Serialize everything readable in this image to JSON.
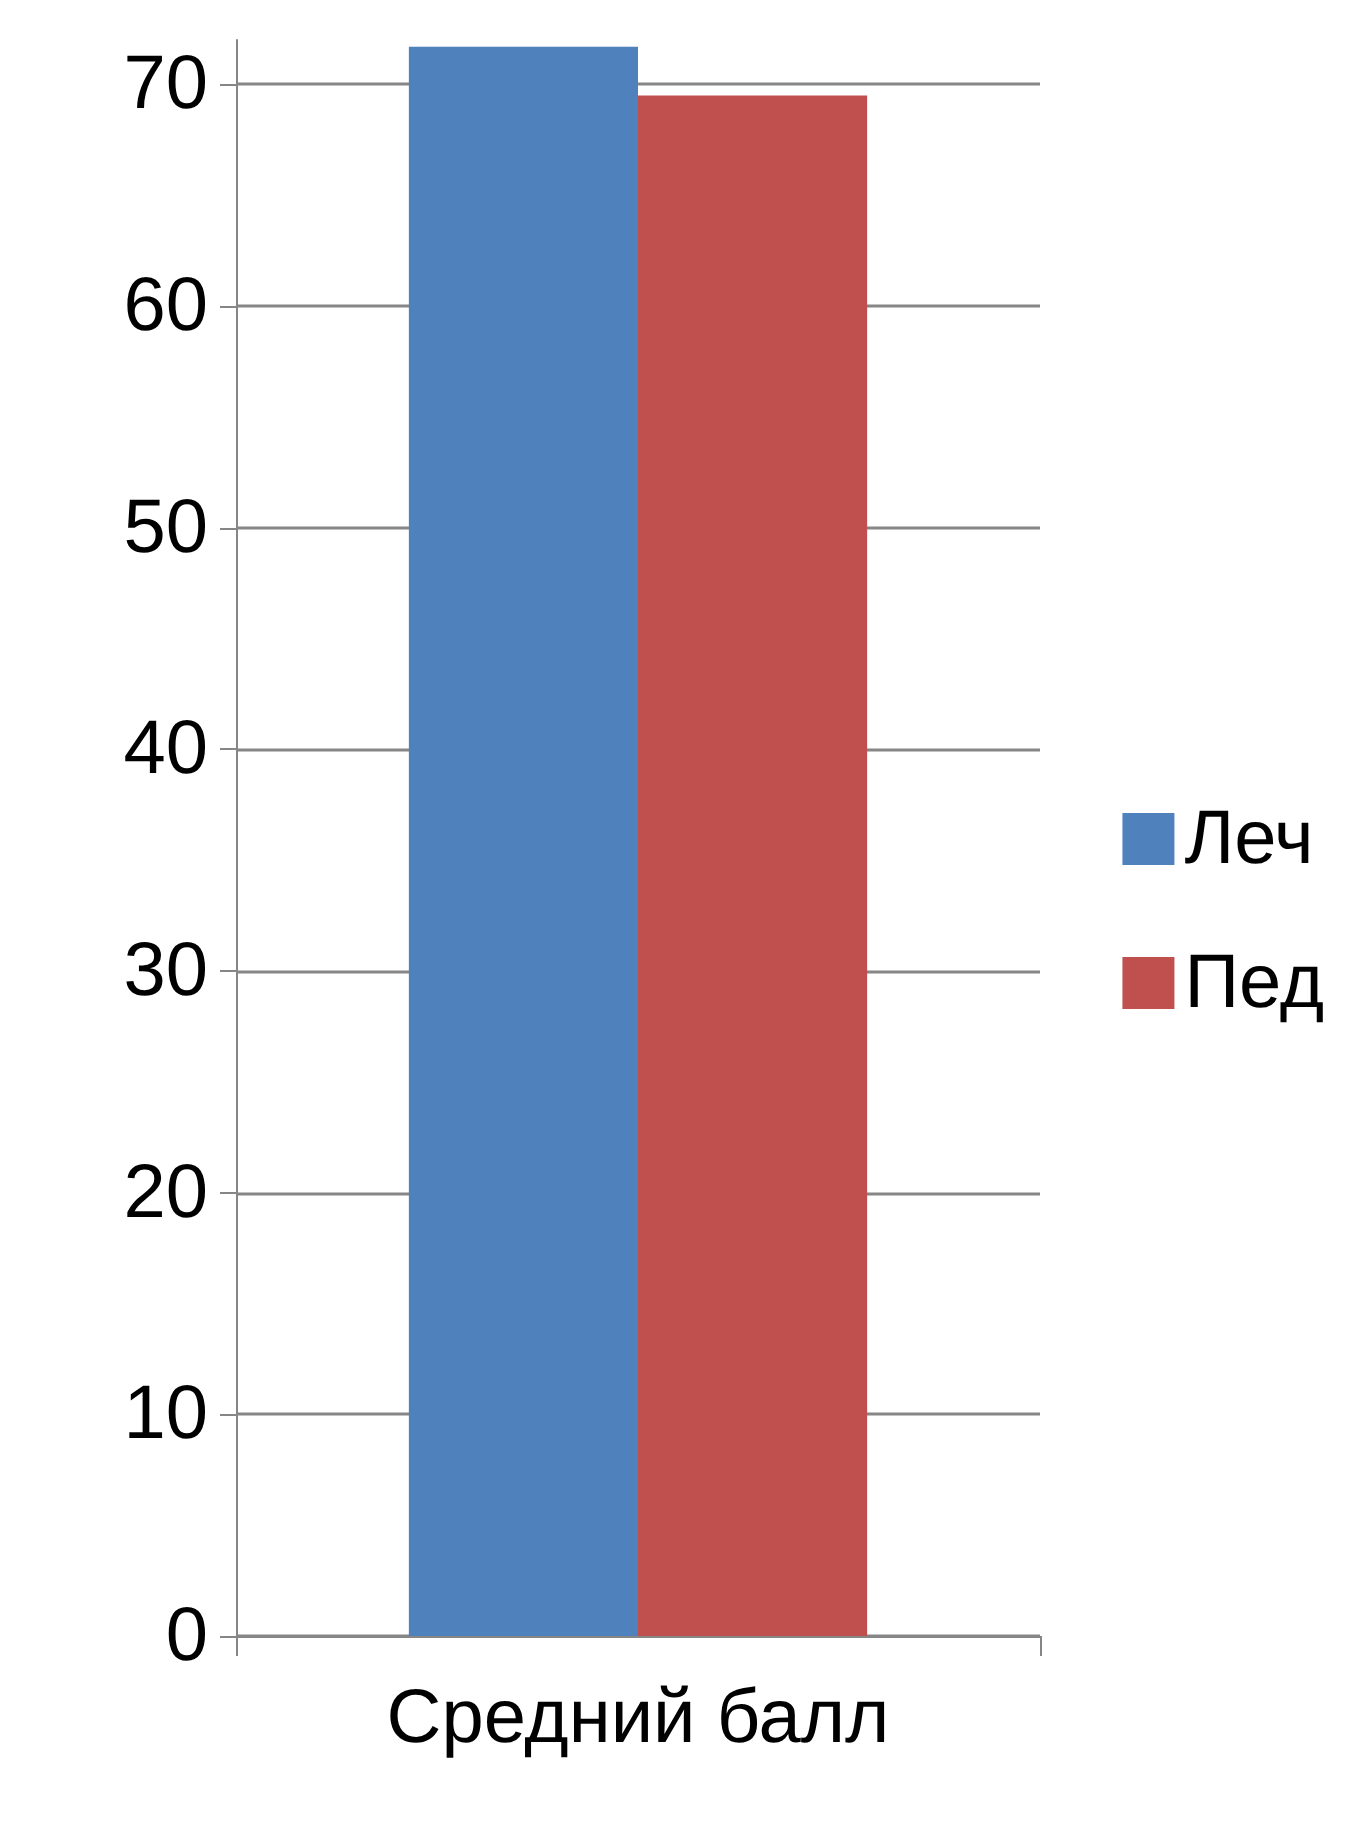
{
  "chart_data": {
    "type": "bar",
    "categories": [
      "Средний балл"
    ],
    "series": [
      {
        "name": "Леч",
        "color": "#4f81bd",
        "values": [
          71.7
        ]
      },
      {
        "name": "Пед",
        "color": "#c0504d",
        "values": [
          69.5
        ]
      }
    ],
    "ylim": [
      0,
      72
    ],
    "yticks": [
      0,
      10,
      20,
      30,
      40,
      50,
      60,
      70
    ],
    "grid": "y",
    "legend": "right"
  }
}
